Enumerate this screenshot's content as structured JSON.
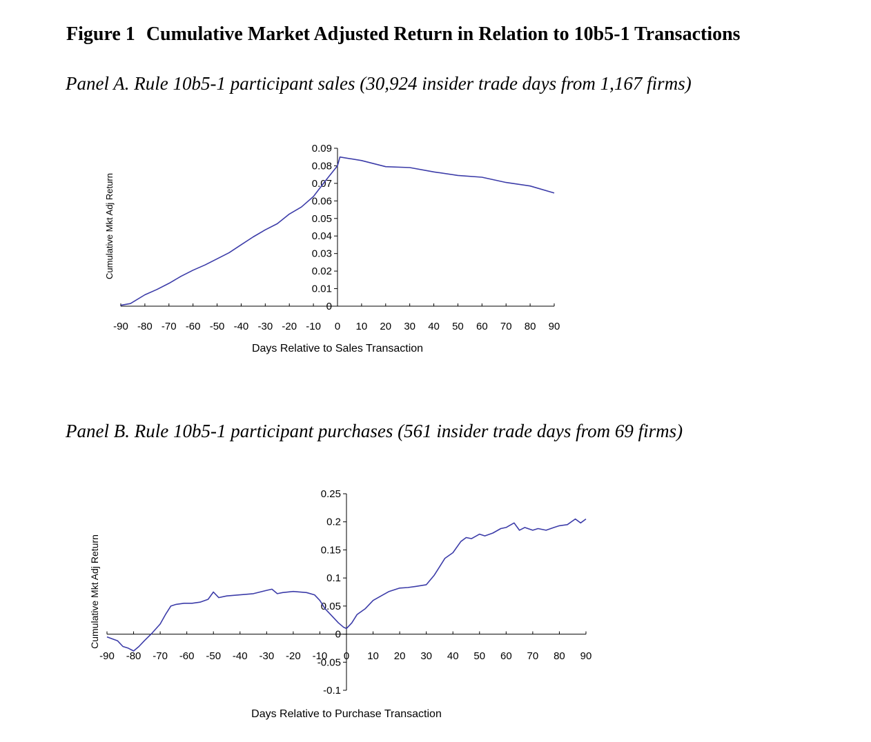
{
  "figure": {
    "label": "Figure 1",
    "title": "Cumulative Market Adjusted Return in Relation to 10b5-1 Transactions"
  },
  "panels": [
    {
      "title": "Panel A.  Rule 10b5-1 participant sales (30,924 insider trade days from 1,167 firms)"
    },
    {
      "title": "Panel B.  Rule 10b5-1 participant purchases (561 insider trade days from 69 firms)"
    }
  ],
  "chart_data": [
    {
      "type": "line",
      "xlabel": "Days Relative to Sales Transaction",
      "ylabel": "Cumulative Mkt Adj Return",
      "xlim": [
        -90,
        90
      ],
      "ylim": [
        0,
        0.09
      ],
      "x_ticks": [
        -90,
        -80,
        -70,
        -60,
        -50,
        -40,
        -30,
        -20,
        -10,
        0,
        10,
        20,
        30,
        40,
        50,
        60,
        70,
        80,
        90
      ],
      "y_ticks": [
        0,
        0.01,
        0.02,
        0.03,
        0.04,
        0.05,
        0.06,
        0.07,
        0.08,
        0.09
      ],
      "y_tick_labels": [
        "0",
        "0.01",
        "0.02",
        "0.03",
        "0.04",
        "0.05",
        "0.06",
        "0.07",
        "0.08",
        "0.09"
      ],
      "series_color": "#3b3ba8",
      "grid": false,
      "series": [
        {
          "x": [
            -90,
            -86,
            -80,
            -75,
            -70,
            -65,
            -60,
            -55,
            -50,
            -45,
            -40,
            -35,
            -30,
            -25,
            -20,
            -15,
            -10,
            -5,
            0,
            1,
            10,
            20,
            30,
            40,
            50,
            60,
            70,
            80,
            90
          ],
          "y": [
            0.0005,
            0.0015,
            0.0065,
            0.0095,
            0.013,
            0.017,
            0.0205,
            0.0235,
            0.027,
            0.0305,
            0.035,
            0.0395,
            0.0435,
            0.047,
            0.0525,
            0.0565,
            0.0625,
            0.0715,
            0.08,
            0.085,
            0.083,
            0.0795,
            0.079,
            0.0765,
            0.0745,
            0.0735,
            0.0705,
            0.0685,
            0.0645
          ]
        }
      ]
    },
    {
      "type": "line",
      "xlabel": "Days Relative to Purchase Transaction",
      "ylabel": "Cumulative Mkt Adj Return",
      "xlim": [
        -90,
        90
      ],
      "ylim": [
        -0.1,
        0.25
      ],
      "x_ticks": [
        -90,
        -80,
        -70,
        -60,
        -50,
        -40,
        -30,
        -20,
        -10,
        0,
        10,
        20,
        30,
        40,
        50,
        60,
        70,
        80,
        90
      ],
      "y_ticks": [
        -0.1,
        -0.05,
        0,
        0.05,
        0.1,
        0.15,
        0.2,
        0.25
      ],
      "y_tick_labels": [
        "-0.1",
        "-0.05",
        "0",
        "0.05",
        "0.1",
        "0.15",
        "0.2",
        "0.25"
      ],
      "series_color": "#3b3ba8",
      "grid": false,
      "series": [
        {
          "x": [
            -90,
            -86,
            -84,
            -82,
            -80,
            -78,
            -76,
            -73,
            -70,
            -68,
            -66,
            -64,
            -61,
            -58,
            -55,
            -52,
            -50,
            -48,
            -45,
            -40,
            -35,
            -30,
            -28,
            -26,
            -24,
            -20,
            -15,
            -12,
            -10,
            -8,
            -6,
            -3,
            -1,
            0,
            2,
            4,
            7,
            10,
            13,
            16,
            20,
            23,
            26,
            30,
            33,
            35,
            37,
            40,
            43,
            45,
            47,
            50,
            52,
            55,
            58,
            60,
            63,
            65,
            67,
            70,
            72,
            75,
            78,
            80,
            83,
            86,
            88,
            90
          ],
          "y": [
            -0.005,
            -0.012,
            -0.022,
            -0.025,
            -0.03,
            -0.022,
            -0.012,
            0.002,
            0.018,
            0.035,
            0.05,
            0.053,
            0.055,
            0.055,
            0.057,
            0.062,
            0.075,
            0.065,
            0.068,
            0.07,
            0.072,
            0.078,
            0.08,
            0.072,
            0.074,
            0.076,
            0.074,
            0.07,
            0.06,
            0.045,
            0.035,
            0.02,
            0.012,
            0.01,
            0.02,
            0.035,
            0.045,
            0.06,
            0.068,
            0.076,
            0.082,
            0.083,
            0.085,
            0.088,
            0.105,
            0.12,
            0.135,
            0.145,
            0.165,
            0.172,
            0.17,
            0.178,
            0.175,
            0.18,
            0.188,
            0.19,
            0.198,
            0.185,
            0.19,
            0.185,
            0.188,
            0.185,
            0.19,
            0.193,
            0.195,
            0.205,
            0.198,
            0.205
          ]
        }
      ]
    }
  ]
}
